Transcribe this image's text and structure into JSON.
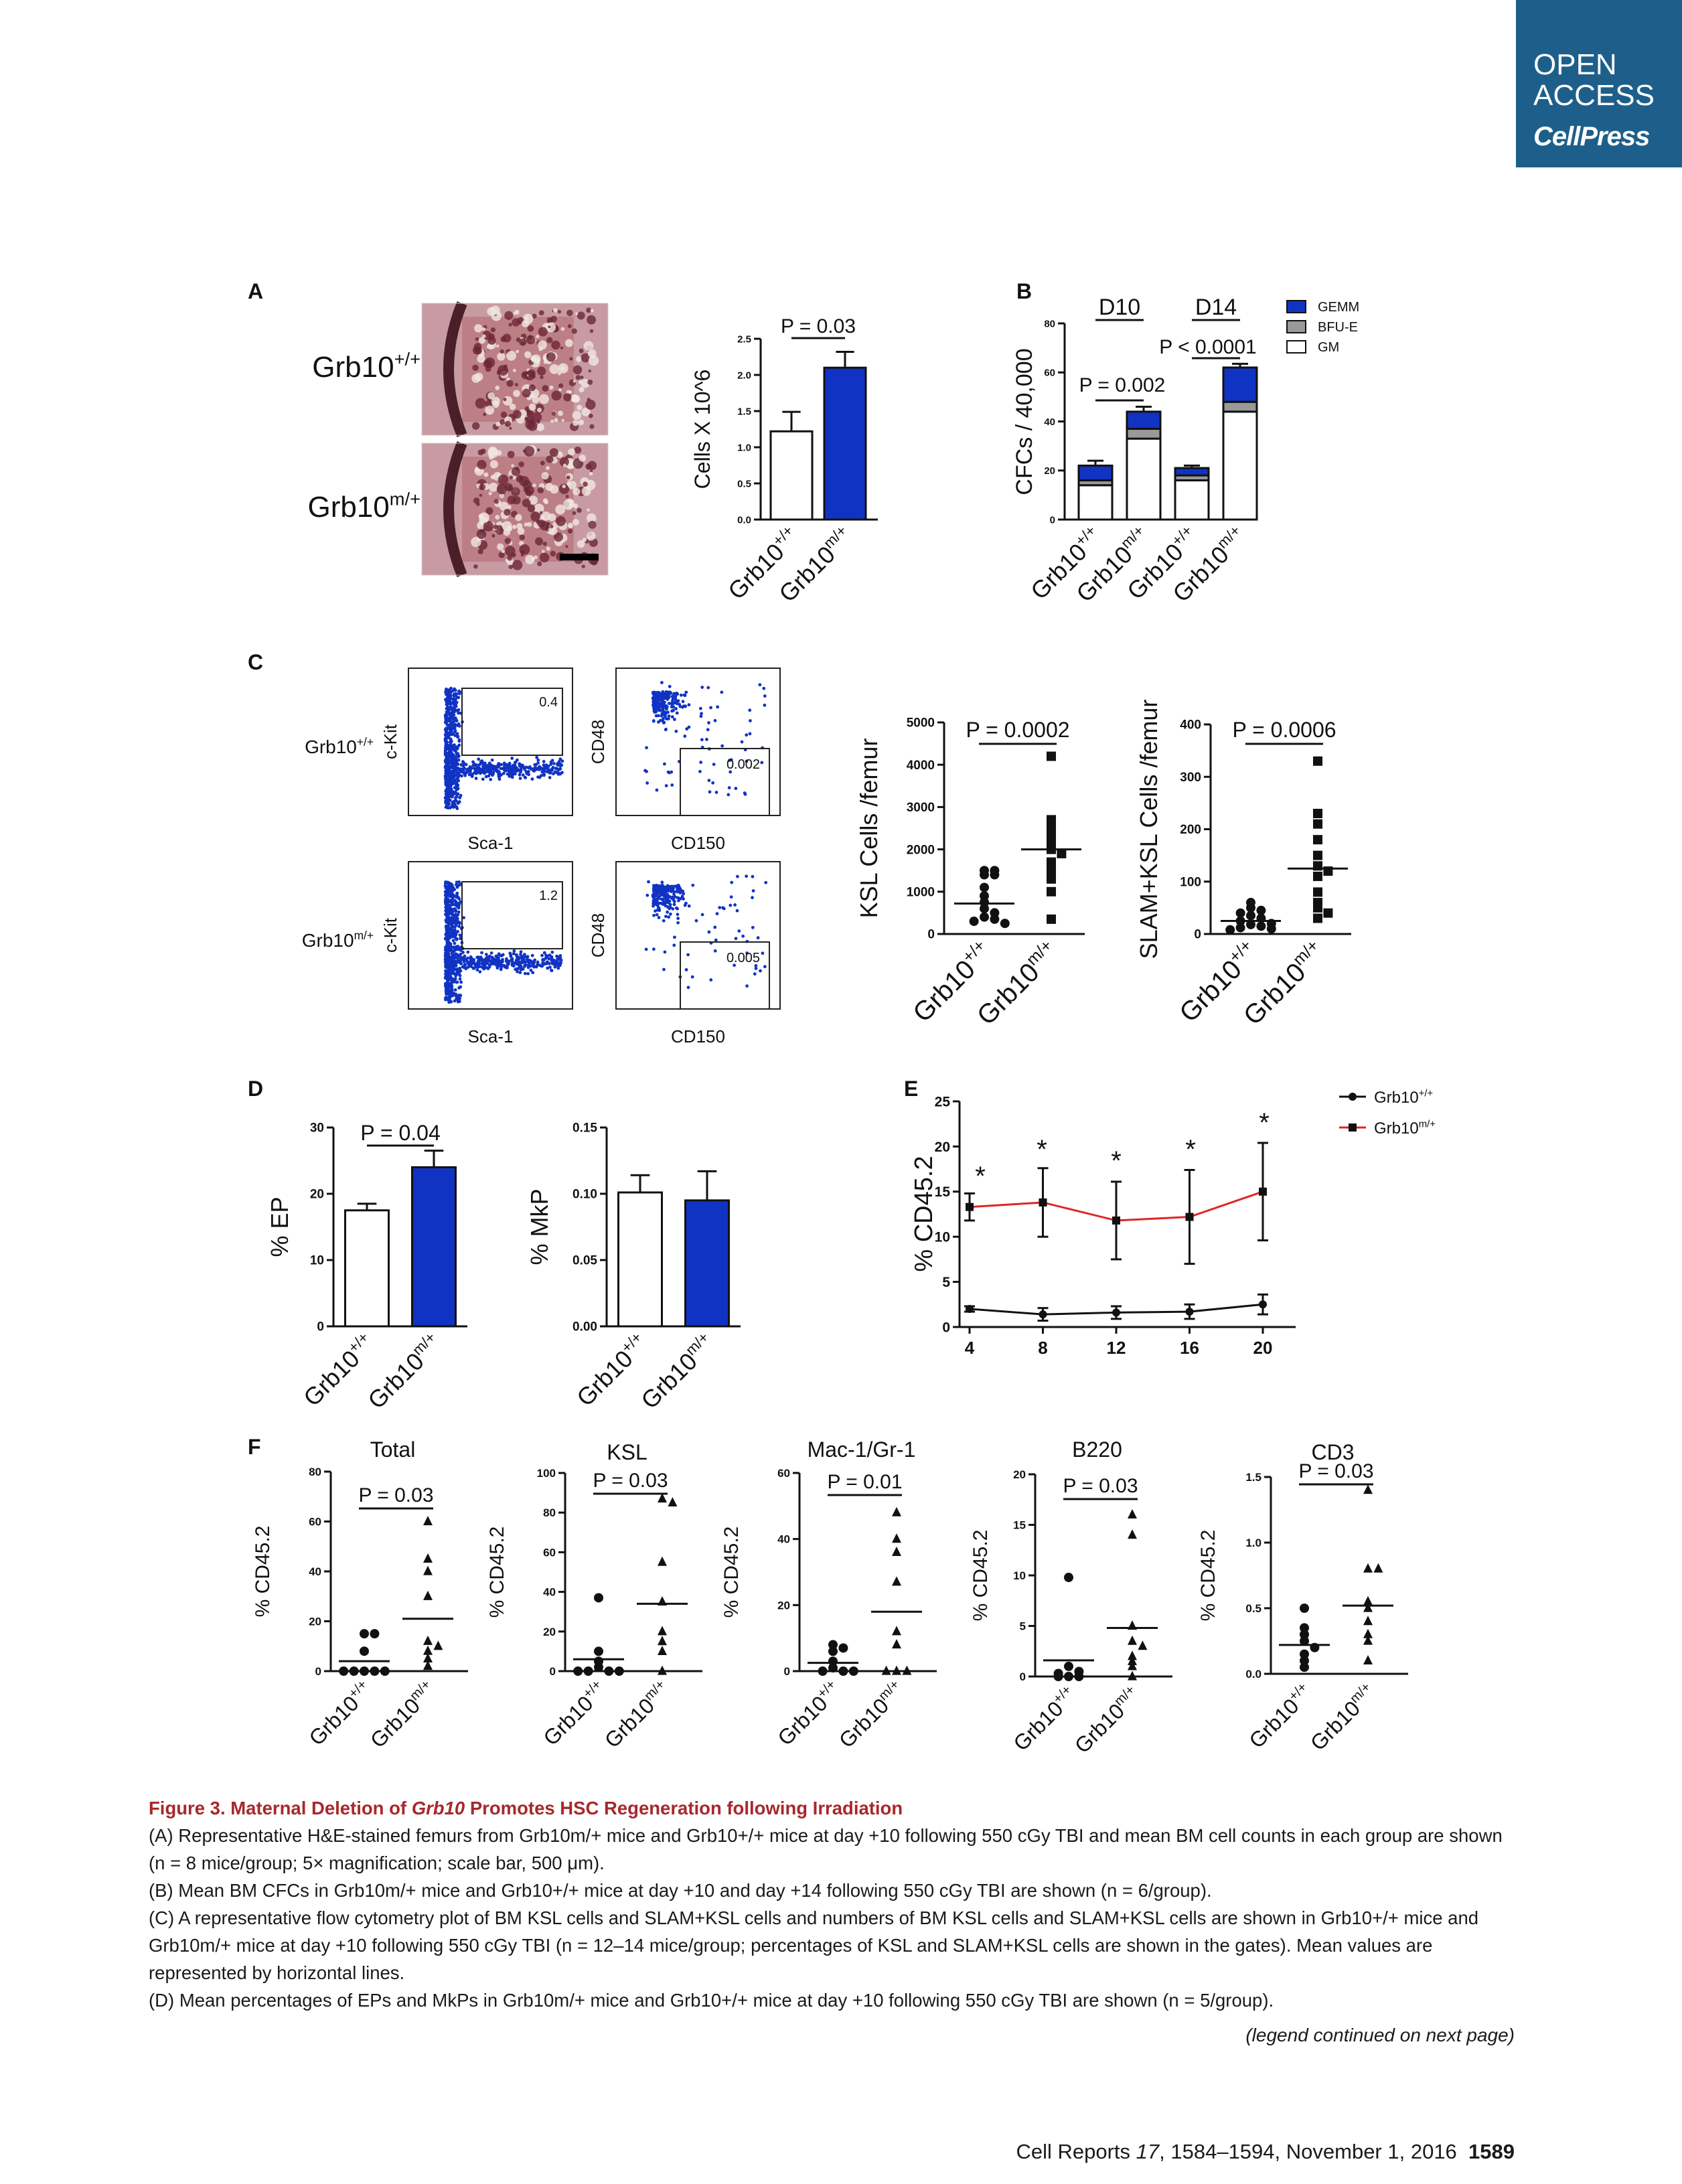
{
  "badge": {
    "line1": "OPEN",
    "line2": "ACCESS",
    "line3": "CellPress"
  },
  "panel_labels": [
    "A",
    "B",
    "C",
    "D",
    "E",
    "F"
  ],
  "genotypes": {
    "wt": "Grb10+/+",
    "mut": "Grb10m/+"
  },
  "colors": {
    "blue": "#1133c4",
    "red": "#e02525",
    "gray": "#999999",
    "black": "#111111",
    "title_red": "#a8282d",
    "badge": "#1d5f8a"
  },
  "panelA": {
    "images": [
      {
        "label": "Grb10+/+"
      },
      {
        "label": "Grb10m/+"
      }
    ],
    "chart_data": {
      "type": "bar",
      "categories": [
        "Grb10+/+",
        "Grb10m/+"
      ],
      "values": [
        1.22,
        2.1
      ],
      "errors": [
        0.27,
        0.22
      ],
      "ylabel": "Cells X 10^6",
      "ylim": [
        0,
        2.5
      ],
      "yticks": [
        "0.0",
        "0.5",
        "1.0",
        "1.5",
        "2.0",
        "2.5"
      ],
      "pvalue": "P = 0.03"
    }
  },
  "panelB": {
    "chart_data": {
      "type": "bar",
      "stacked": true,
      "categories": [
        "Grb10+/+",
        "Grb10m/+",
        "Grb10+/+",
        "Grb10m/+"
      ],
      "groups": [
        "D10",
        "D14"
      ],
      "series": [
        {
          "name": "GM",
          "values": [
            14,
            33,
            16,
            44
          ]
        },
        {
          "name": "BFU-E",
          "values": [
            2,
            4,
            2,
            4
          ]
        },
        {
          "name": "GEMM",
          "values": [
            6,
            7,
            3,
            14
          ]
        }
      ],
      "errors": [
        2,
        2,
        1,
        1.5
      ],
      "ylabel": "CFCs / 40,000",
      "ylim": [
        0,
        80
      ],
      "yticks": [
        "0",
        "20",
        "40",
        "60",
        "80"
      ],
      "pvalues": [
        "P = 0.002",
        "P < 0.0001"
      ],
      "legend_position": "top-right"
    }
  },
  "panelC": {
    "flow": [
      {
        "row": "Grb10+/+",
        "plot1": {
          "x": "Sca-1",
          "y": "c-Kit",
          "gate": "0.4"
        },
        "plot2": {
          "x": "CD150",
          "y": "CD48",
          "gate": "0.002"
        }
      },
      {
        "row": "Grb10m/+",
        "plot1": {
          "x": "Sca-1",
          "y": "c-Kit",
          "gate": "1.2"
        },
        "plot2": {
          "x": "CD150",
          "y": "CD48",
          "gate": "0.005"
        }
      }
    ],
    "chart_data": [
      {
        "type": "scatter",
        "ylabel": "KSL Cells /femur",
        "ylim": [
          0,
          5000
        ],
        "yticks": [
          "0",
          "1000",
          "2000",
          "3000",
          "4000",
          "5000"
        ],
        "pvalue": "P = 0.0002",
        "categories": [
          "Grb10+/+",
          "Grb10m/+"
        ],
        "groups": [
          {
            "name": "Grb10+/+",
            "marker": "circle",
            "values": [
              1500,
              1500,
              1400,
              1400,
              1100,
              900,
              750,
              600,
              500,
              400,
              350,
              300,
              250
            ],
            "mean": 720
          },
          {
            "name": "Grb10m/+",
            "marker": "square",
            "values": [
              4200,
              2700,
              2500,
              2300,
              2100,
              2000,
              1900,
              1700,
              1500,
              1300,
              1000,
              350
            ],
            "mean": 2000
          }
        ]
      },
      {
        "type": "scatter",
        "ylabel": "SLAM+KSL Cells /femur",
        "ylim": [
          0,
          400
        ],
        "yticks": [
          "0",
          "100",
          "200",
          "300",
          "400"
        ],
        "pvalue": "P = 0.0006",
        "categories": [
          "Grb10+/+",
          "Grb10m/+"
        ],
        "groups": [
          {
            "name": "Grb10+/+",
            "marker": "circle",
            "values": [
              60,
              50,
              45,
              40,
              35,
              30,
              25,
              20,
              18,
              15,
              12,
              10,
              8
            ],
            "mean": 25
          },
          {
            "name": "Grb10m/+",
            "marker": "square",
            "values": [
              330,
              230,
              210,
              180,
              150,
              130,
              120,
              110,
              80,
              60,
              50,
              40,
              30
            ],
            "mean": 125
          }
        ]
      }
    ]
  },
  "panelD": {
    "chart_data": [
      {
        "type": "bar",
        "categories": [
          "Grb10+/+",
          "Grb10m/+"
        ],
        "values": [
          17.5,
          24
        ],
        "errors": [
          1,
          2.5
        ],
        "ylabel": "% EP",
        "ylim": [
          0,
          30
        ],
        "yticks": [
          "0",
          "10",
          "20",
          "30"
        ],
        "pvalue": "P = 0.04"
      },
      {
        "type": "bar",
        "categories": [
          "Grb10+/+",
          "Grb10m/+"
        ],
        "values": [
          0.101,
          0.095
        ],
        "errors": [
          0.013,
          0.022
        ],
        "ylabel": "% MkP",
        "ylim": [
          0,
          0.15
        ],
        "yticks": [
          "0.00",
          "0.05",
          "0.10",
          "0.15"
        ],
        "pvalue": ""
      }
    ]
  },
  "panelE": {
    "chart_data": {
      "type": "line",
      "x": [
        4,
        8,
        12,
        16,
        20
      ],
      "xticks": [
        "4",
        "8",
        "12",
        "16",
        "20"
      ],
      "series": [
        {
          "name": "Grb10+/+",
          "values": [
            2,
            1.4,
            1.6,
            1.7,
            2.5
          ],
          "errors": [
            0.3,
            0.7,
            0.7,
            0.8,
            1.1
          ],
          "marker": "circle"
        },
        {
          "name": "Grb10m/+",
          "values": [
            13.3,
            13.8,
            11.8,
            12.2,
            15
          ],
          "errors": [
            1.5,
            3.8,
            4.3,
            5.2,
            5.4
          ],
          "marker": "square"
        }
      ],
      "significance": [
        "*",
        "*",
        "*",
        "*",
        "*"
      ],
      "ylabel": "% CD45.2",
      "ylim": [
        0,
        25
      ],
      "yticks": [
        "0",
        "5",
        "10",
        "15",
        "20",
        "25"
      ],
      "legend_position": "top-right"
    }
  },
  "panelF": {
    "chart_data": [
      {
        "type": "scatter",
        "title": "Total",
        "ylabel": "% CD45.2",
        "ylim": [
          0,
          80
        ],
        "yticks": [
          "0",
          "20",
          "40",
          "60",
          "80"
        ],
        "pvalue": "P = 0.03",
        "categories": [
          "Grb10+/+",
          "Grb10m/+"
        ],
        "groups": [
          {
            "marker": "circle",
            "values": [
              15,
              15,
              8,
              0,
              0,
              0,
              0,
              0
            ],
            "mean": 4
          },
          {
            "marker": "triangle",
            "values": [
              60,
              45,
              40,
              30,
              12,
              10,
              8,
              5,
              2
            ],
            "mean": 21
          }
        ]
      },
      {
        "type": "scatter",
        "title": "KSL",
        "ylabel": "% CD45.2",
        "ylim": [
          0,
          100
        ],
        "yticks": [
          "0",
          "20",
          "40",
          "60",
          "80",
          "100"
        ],
        "pvalue": "P = 0.03",
        "categories": [
          "Grb10+/+",
          "Grb10m/+"
        ],
        "groups": [
          {
            "marker": "circle",
            "values": [
              37,
              10,
              5,
              2,
              0,
              0,
              0,
              0
            ],
            "mean": 6
          },
          {
            "marker": "triangle",
            "values": [
              87,
              85,
              55,
              35,
              20,
              15,
              10,
              0
            ],
            "mean": 34
          }
        ]
      },
      {
        "type": "scatter",
        "title": "Mac-1/Gr-1",
        "ylabel": "% CD45.2",
        "ylim": [
          0,
          60
        ],
        "yticks": [
          "0",
          "20",
          "40",
          "60"
        ],
        "pvalue": "P = 0.01",
        "categories": [
          "Grb10+/+",
          "Grb10m/+"
        ],
        "groups": [
          {
            "marker": "circle",
            "values": [
              8,
              7,
              6,
              3,
              1,
              0,
              0,
              0
            ],
            "mean": 2.5
          },
          {
            "marker": "triangle",
            "values": [
              48,
              40,
              36,
              27,
              12,
              8,
              0,
              0,
              0
            ],
            "mean": 18
          }
        ]
      },
      {
        "type": "scatter",
        "title": "B220",
        "ylabel": "% CD45.2",
        "ylim": [
          0,
          20
        ],
        "yticks": [
          "0",
          "5",
          "10",
          "15",
          "20"
        ],
        "pvalue": "P = 0.03",
        "categories": [
          "Grb10+/+",
          "Grb10m/+"
        ],
        "groups": [
          {
            "marker": "circle",
            "values": [
              9.8,
              1,
              0.5,
              0.3,
              0,
              0,
              0
            ],
            "mean": 1.6
          },
          {
            "marker": "triangle",
            "values": [
              16,
              14,
              5,
              3.5,
              3,
              2,
              1.5,
              1,
              0
            ],
            "mean": 4.8
          }
        ]
      },
      {
        "type": "scatter",
        "title": "CD3",
        "ylabel": "% CD45.2",
        "ylim": [
          0,
          1.5
        ],
        "yticks": [
          "0.0",
          "0.5",
          "1.0",
          "1.5"
        ],
        "pvalue": "P = 0.03",
        "categories": [
          "Grb10+/+",
          "Grb10m/+"
        ],
        "groups": [
          {
            "marker": "circle",
            "values": [
              0.5,
              0.35,
              0.3,
              0.25,
              0.2,
              0.15,
              0.1,
              0.05
            ],
            "mean": 0.22
          },
          {
            "marker": "triangle",
            "values": [
              1.4,
              0.8,
              0.8,
              0.55,
              0.5,
              0.4,
              0.3,
              0.25,
              0.1
            ],
            "mean": 0.52
          }
        ]
      }
    ]
  },
  "caption": {
    "title_prefix": "Figure 3. Maternal Deletion of ",
    "title_gene": "Grb10",
    "title_suffix": " Promotes HSC Regeneration following Irradiation",
    "A": "(A) Representative H&E-stained femurs from Grb10m/+ mice and Grb10+/+ mice at day +10 following 550 cGy TBI and mean BM cell counts in each group are shown (n = 8 mice/group; 5× magnification; scale bar, 500 μm).",
    "B": "(B) Mean BM CFCs in Grb10m/+ mice and Grb10+/+ mice at day +10 and day +14 following 550 cGy TBI are shown (n = 6/group).",
    "C": "(C) A representative flow cytometry plot of BM KSL cells and SLAM+KSL cells and numbers of BM KSL cells and SLAM+KSL cells are shown in Grb10+/+ mice and Grb10m/+ mice at day +10 following 550 cGy TBI (n = 12–14 mice/group; percentages of KSL and SLAM+KSL cells are shown in the gates). Mean values are represented by horizontal lines.",
    "D": "(D) Mean percentages of EPs and MkPs in Grb10m/+ mice and Grb10+/+ mice at day +10 following 550 cGy TBI are shown (n = 5/group).",
    "continued": "(legend continued on next page)"
  },
  "footer": {
    "journal": "Cell Reports ",
    "volume": "17",
    "pages": ", 1584–1594, November 1, 2016",
    "page_number": "1589"
  }
}
